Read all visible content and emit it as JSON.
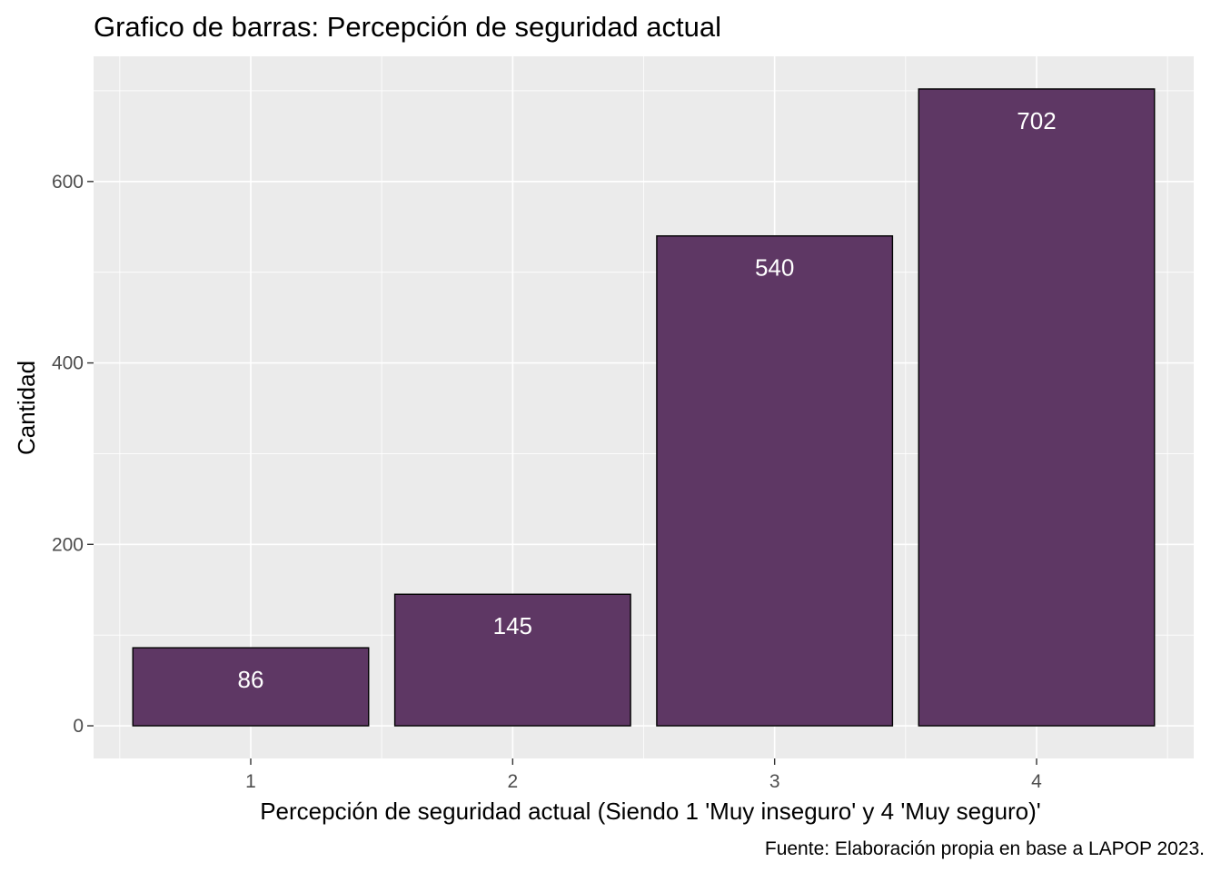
{
  "chart_data": {
    "type": "bar",
    "title": "Grafico de barras: Percepción de seguridad actual",
    "xlabel": "Percepción de seguridad actual (Siendo 1 'Muy inseguro' y 4 'Muy seguro)'",
    "ylabel": "Cantidad",
    "caption": "Fuente:  Elaboración propia en base a LAPOP 2023.",
    "categories": [
      "1",
      "2",
      "3",
      "4"
    ],
    "values": [
      86,
      145,
      540,
      702
    ],
    "data_labels": [
      "86",
      "145",
      "540",
      "702"
    ],
    "y_ticks": [
      0,
      200,
      400,
      600
    ],
    "y_tick_labels": [
      "0",
      "200",
      "400",
      "600"
    ],
    "ylim": [
      -36,
      738
    ],
    "grid": true,
    "legend": "none",
    "colors": {
      "bar_fill": "#5e3764",
      "bar_stroke": "#000000",
      "panel_background": "#ebebeb",
      "grid_line": "#ffffff",
      "tick_text": "#4d4d4d",
      "bar_label_text": "#ffffff"
    }
  }
}
